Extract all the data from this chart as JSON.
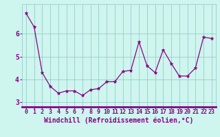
{
  "x": [
    0,
    1,
    2,
    3,
    4,
    5,
    6,
    7,
    8,
    9,
    10,
    11,
    12,
    13,
    14,
    15,
    16,
    17,
    18,
    19,
    20,
    21,
    22,
    23
  ],
  "y": [
    6.9,
    6.3,
    4.3,
    3.7,
    3.4,
    3.5,
    3.5,
    3.3,
    3.55,
    3.6,
    3.9,
    3.9,
    4.35,
    4.4,
    5.65,
    4.6,
    4.3,
    5.3,
    4.7,
    4.15,
    4.15,
    4.5,
    5.85,
    5.8
  ],
  "line_color": "#880088",
  "marker": "*",
  "marker_size": 3.5,
  "bg_color": "#cef5ee",
  "plot_bg_color": "#cef5ee",
  "grid_color": "#99cccc",
  "xlabel": "Windchill (Refroidissement éolien,°C)",
  "xlabel_color": "#880088",
  "xlabel_fontsize": 7,
  "tick_color": "#880088",
  "tick_fontsize": 6,
  "ytick_fontsize": 7,
  "ylim_min": 2.8,
  "ylim_max": 7.3,
  "ytick_values": [
    3,
    4,
    5,
    6
  ],
  "xtick_values": [
    0,
    1,
    2,
    3,
    4,
    5,
    6,
    7,
    8,
    9,
    10,
    11,
    12,
    13,
    14,
    15,
    16,
    17,
    18,
    19,
    20,
    21,
    22,
    23
  ],
  "spine_color": "#880088",
  "bottom_bar_color": "#880088"
}
